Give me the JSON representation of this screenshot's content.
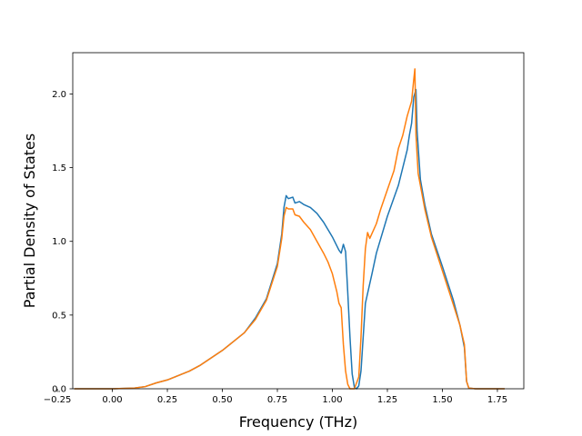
{
  "chart_data": {
    "type": "line",
    "title": "",
    "xlabel": "Frequency (THz)",
    "ylabel": "Partial Density of States",
    "xlim": [
      -0.18,
      1.87
    ],
    "ylim": [
      0.0,
      2.28
    ],
    "grid": false,
    "x_ticks": [
      -0.25,
      0.0,
      0.25,
      0.5,
      0.75,
      1.0,
      1.25,
      1.5,
      1.75
    ],
    "x_tick_labels": [
      "−0.25",
      "0.00",
      "0.25",
      "0.50",
      "0.75",
      "1.00",
      "1.25",
      "1.50",
      "1.75"
    ],
    "y_ticks": [
      0.0,
      0.5,
      1.0,
      1.5,
      2.0
    ],
    "y_tick_labels": [
      "0.0",
      "0.5",
      "1.0",
      "1.5",
      "2.0"
    ],
    "series": [
      {
        "color": "#1f77b4",
        "points": [
          [
            -0.17,
            0.0
          ],
          [
            0.0,
            0.0
          ],
          [
            0.1,
            0.005
          ],
          [
            0.15,
            0.015
          ],
          [
            0.2,
            0.04
          ],
          [
            0.25,
            0.06
          ],
          [
            0.3,
            0.09
          ],
          [
            0.35,
            0.12
          ],
          [
            0.4,
            0.16
          ],
          [
            0.45,
            0.21
          ],
          [
            0.5,
            0.26
          ],
          [
            0.55,
            0.32
          ],
          [
            0.6,
            0.38
          ],
          [
            0.65,
            0.48
          ],
          [
            0.7,
            0.61
          ],
          [
            0.75,
            0.85
          ],
          [
            0.77,
            1.05
          ],
          [
            0.78,
            1.23
          ],
          [
            0.79,
            1.31
          ],
          [
            0.8,
            1.29
          ],
          [
            0.82,
            1.3
          ],
          [
            0.83,
            1.26
          ],
          [
            0.85,
            1.27
          ],
          [
            0.87,
            1.25
          ],
          [
            0.9,
            1.23
          ],
          [
            0.93,
            1.19
          ],
          [
            0.96,
            1.13
          ],
          [
            0.98,
            1.08
          ],
          [
            1.0,
            1.03
          ],
          [
            1.02,
            0.97
          ],
          [
            1.03,
            0.94
          ],
          [
            1.04,
            0.92
          ],
          [
            1.05,
            0.98
          ],
          [
            1.06,
            0.93
          ],
          [
            1.07,
            0.65
          ],
          [
            1.08,
            0.35
          ],
          [
            1.09,
            0.1
          ],
          [
            1.1,
            0.01
          ],
          [
            1.11,
            0.0
          ],
          [
            1.12,
            0.02
          ],
          [
            1.13,
            0.12
          ],
          [
            1.14,
            0.35
          ],
          [
            1.15,
            0.58
          ],
          [
            1.18,
            0.78
          ],
          [
            1.2,
            0.92
          ],
          [
            1.25,
            1.17
          ],
          [
            1.3,
            1.38
          ],
          [
            1.32,
            1.5
          ],
          [
            1.34,
            1.62
          ],
          [
            1.35,
            1.72
          ],
          [
            1.36,
            1.8
          ],
          [
            1.37,
            1.98
          ],
          [
            1.38,
            2.03
          ],
          [
            1.385,
            1.75
          ],
          [
            1.4,
            1.42
          ],
          [
            1.42,
            1.25
          ],
          [
            1.45,
            1.05
          ],
          [
            1.5,
            0.83
          ],
          [
            1.55,
            0.6
          ],
          [
            1.58,
            0.43
          ],
          [
            1.6,
            0.28
          ],
          [
            1.61,
            0.05
          ],
          [
            1.62,
            0.005
          ],
          [
            1.65,
            0.0
          ],
          [
            1.78,
            0.0
          ]
        ]
      },
      {
        "color": "#ff7f0e",
        "points": [
          [
            -0.17,
            0.0
          ],
          [
            0.0,
            0.0
          ],
          [
            0.1,
            0.005
          ],
          [
            0.15,
            0.015
          ],
          [
            0.2,
            0.04
          ],
          [
            0.25,
            0.06
          ],
          [
            0.3,
            0.09
          ],
          [
            0.35,
            0.12
          ],
          [
            0.4,
            0.16
          ],
          [
            0.45,
            0.21
          ],
          [
            0.5,
            0.26
          ],
          [
            0.55,
            0.32
          ],
          [
            0.6,
            0.38
          ],
          [
            0.65,
            0.47
          ],
          [
            0.7,
            0.6
          ],
          [
            0.75,
            0.83
          ],
          [
            0.77,
            1.02
          ],
          [
            0.78,
            1.17
          ],
          [
            0.79,
            1.23
          ],
          [
            0.8,
            1.22
          ],
          [
            0.82,
            1.22
          ],
          [
            0.83,
            1.18
          ],
          [
            0.85,
            1.17
          ],
          [
            0.87,
            1.13
          ],
          [
            0.9,
            1.08
          ],
          [
            0.93,
            1.0
          ],
          [
            0.96,
            0.92
          ],
          [
            0.98,
            0.86
          ],
          [
            1.0,
            0.78
          ],
          [
            1.02,
            0.66
          ],
          [
            1.03,
            0.58
          ],
          [
            1.04,
            0.55
          ],
          [
            1.05,
            0.3
          ],
          [
            1.06,
            0.12
          ],
          [
            1.07,
            0.03
          ],
          [
            1.08,
            0.0
          ],
          [
            1.1,
            0.0
          ],
          [
            1.12,
            0.08
          ],
          [
            1.13,
            0.35
          ],
          [
            1.14,
            0.7
          ],
          [
            1.15,
            0.95
          ],
          [
            1.16,
            1.06
          ],
          [
            1.17,
            1.02
          ],
          [
            1.2,
            1.12
          ],
          [
            1.22,
            1.22
          ],
          [
            1.25,
            1.35
          ],
          [
            1.28,
            1.48
          ],
          [
            1.3,
            1.63
          ],
          [
            1.32,
            1.72
          ],
          [
            1.34,
            1.85
          ],
          [
            1.36,
            1.95
          ],
          [
            1.37,
            2.1
          ],
          [
            1.375,
            2.17
          ],
          [
            1.38,
            1.72
          ],
          [
            1.39,
            1.46
          ],
          [
            1.42,
            1.22
          ],
          [
            1.45,
            1.03
          ],
          [
            1.5,
            0.8
          ],
          [
            1.55,
            0.57
          ],
          [
            1.58,
            0.43
          ],
          [
            1.6,
            0.3
          ],
          [
            1.61,
            0.05
          ],
          [
            1.62,
            0.005
          ],
          [
            1.65,
            0.0
          ],
          [
            1.78,
            0.0
          ]
        ]
      }
    ]
  }
}
